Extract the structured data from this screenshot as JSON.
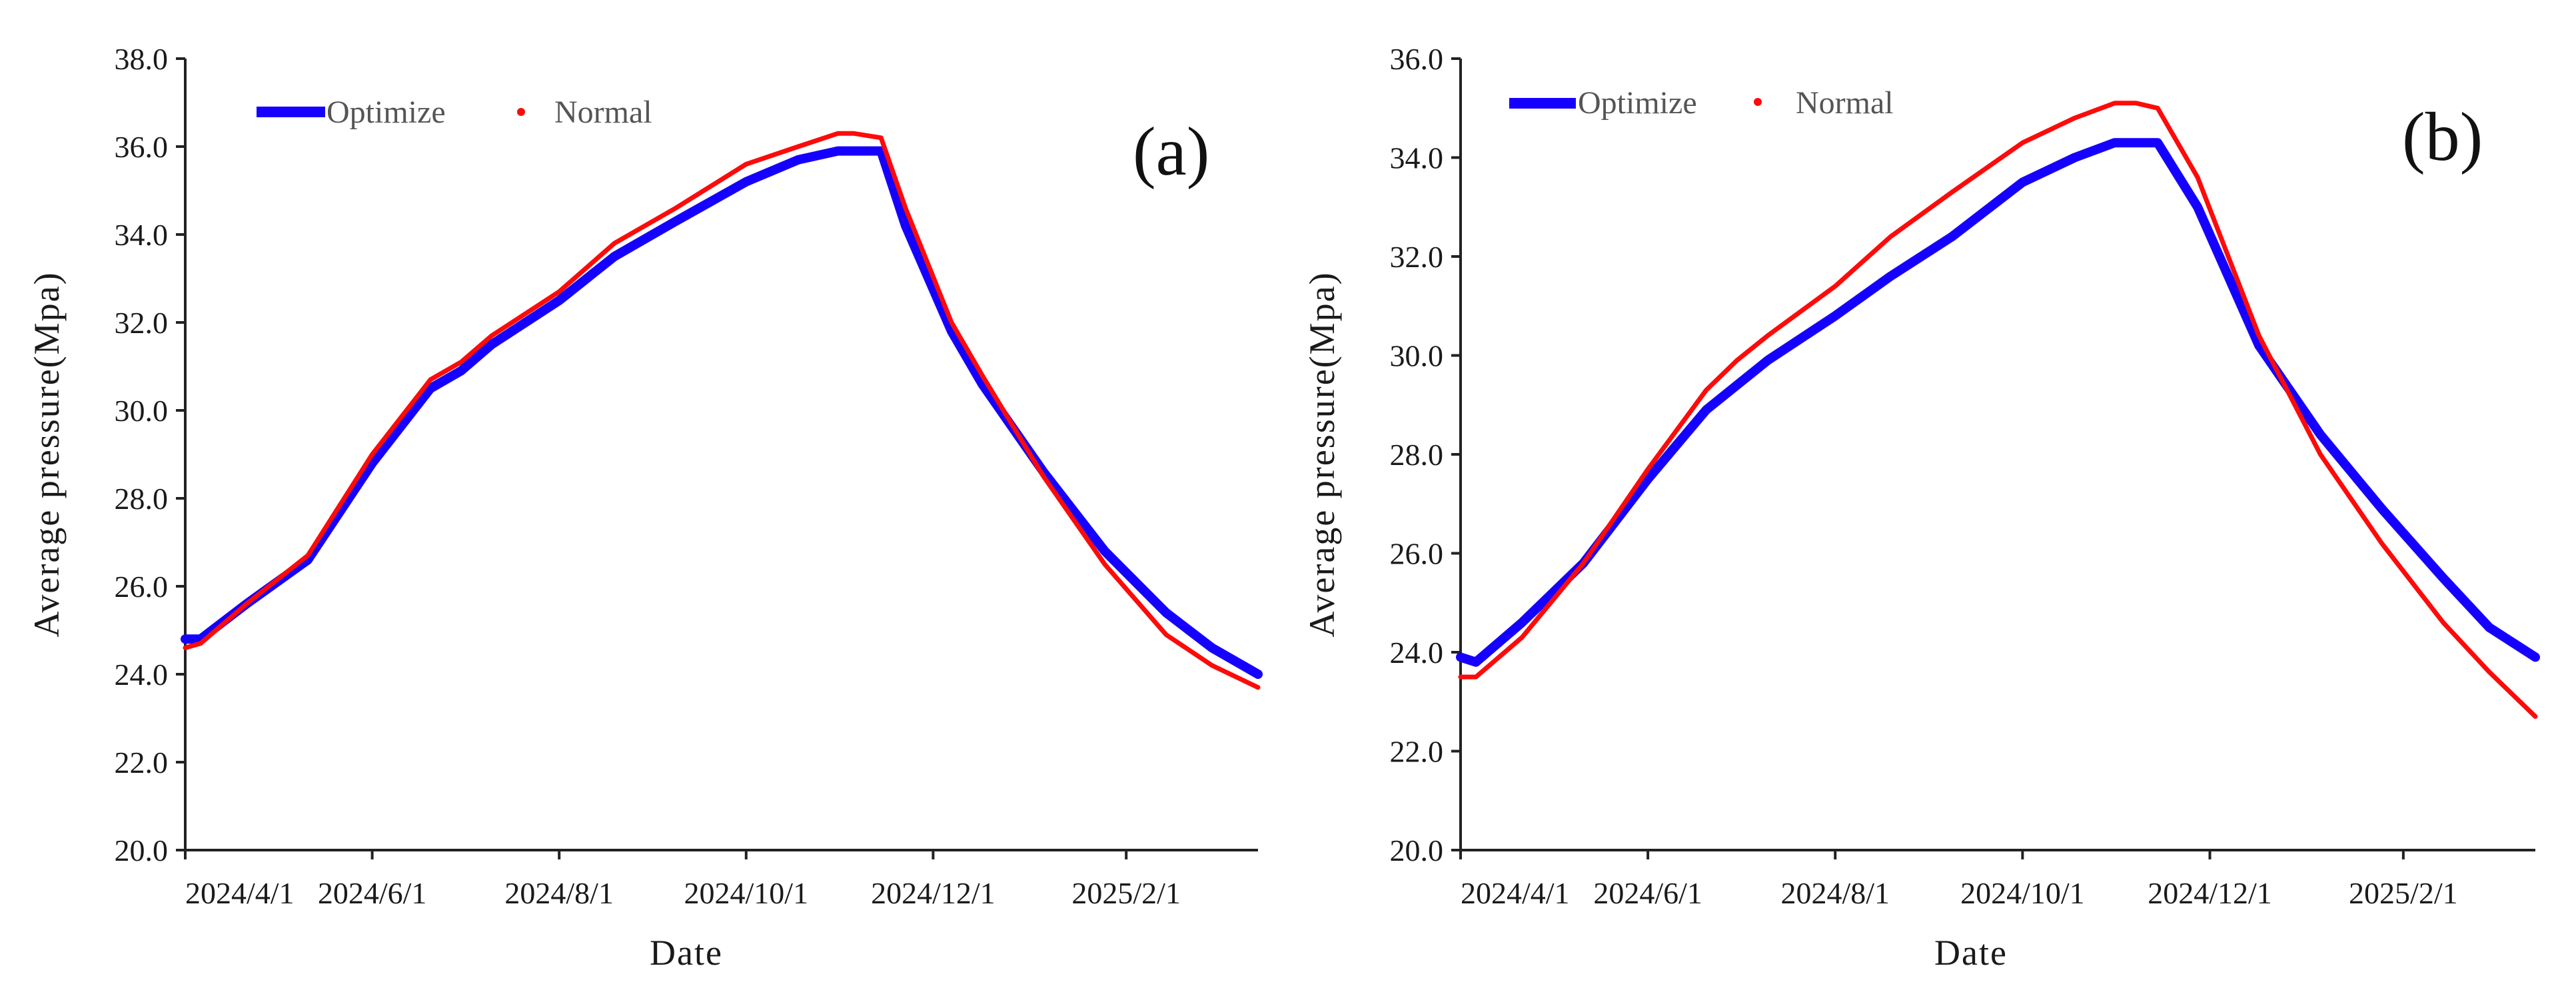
{
  "colors": {
    "optimize": "#1500ff",
    "normal": "#ff0a0a",
    "axis": "#222222",
    "text": "#1a1a1a"
  },
  "chart_data": [
    {
      "type": "line",
      "panel_label": "(a)",
      "xlabel": "Date",
      "ylabel": "Average pressure(Mpa)",
      "ylim": [
        20.0,
        38.0
      ],
      "yticks": [
        "20.0",
        "22.0",
        "24.0",
        "26.0",
        "28.0",
        "30.0",
        "32.0",
        "34.0",
        "36.0",
        "38.0"
      ],
      "x_range_days": [
        0,
        350
      ],
      "xticks": [
        {
          "label": "2024/4/1",
          "day": 0
        },
        {
          "label": "2024/6/1",
          "day": 61
        },
        {
          "label": "2024/8/1",
          "day": 122
        },
        {
          "label": "2024/10/1",
          "day": 183
        },
        {
          "label": "2024/12/1",
          "day": 244
        },
        {
          "label": "2025/2/1",
          "day": 307
        }
      ],
      "legend": [
        {
          "name": "Optimize",
          "style": "thick-line"
        },
        {
          "name": "Normal",
          "style": "dot"
        }
      ],
      "series": [
        {
          "name": "Optimize",
          "x": [
            0,
            5,
            20,
            40,
            61,
            80,
            90,
            100,
            122,
            140,
            160,
            183,
            200,
            213,
            220,
            227,
            235,
            250,
            260,
            280,
            300,
            320,
            335,
            350
          ],
          "y": [
            24.8,
            24.8,
            25.6,
            26.6,
            28.8,
            30.5,
            30.9,
            31.5,
            32.5,
            33.5,
            34.3,
            35.2,
            35.7,
            35.9,
            35.9,
            35.9,
            34.2,
            31.8,
            30.6,
            28.6,
            26.8,
            25.4,
            24.6,
            24.0
          ]
        },
        {
          "name": "Normal",
          "x": [
            0,
            5,
            20,
            40,
            61,
            80,
            90,
            100,
            122,
            140,
            160,
            183,
            200,
            213,
            218,
            227,
            235,
            250,
            260,
            280,
            300,
            320,
            335,
            350
          ],
          "y": [
            24.6,
            24.7,
            25.6,
            26.7,
            29.0,
            30.7,
            31.1,
            31.7,
            32.7,
            33.8,
            34.6,
            35.6,
            36.0,
            36.3,
            36.3,
            36.2,
            34.6,
            32.0,
            30.8,
            28.5,
            26.5,
            24.9,
            24.2,
            23.7
          ]
        }
      ]
    },
    {
      "type": "line",
      "panel_label": "(b)",
      "xlabel": "Date",
      "ylabel": "Average pressure(Mpa)",
      "ylim": [
        20.0,
        36.0
      ],
      "yticks": [
        "20.0",
        "22.0",
        "24.0",
        "26.0",
        "28.0",
        "30.0",
        "32.0",
        "34.0",
        "36.0"
      ],
      "x_range_days": [
        0,
        350
      ],
      "xticks": [
        {
          "label": "2024/4/1",
          "day": 0
        },
        {
          "label": "2024/6/1",
          "day": 61
        },
        {
          "label": "2024/8/1",
          "day": 122
        },
        {
          "label": "2024/10/1",
          "day": 183
        },
        {
          "label": "2024/12/1",
          "day": 244
        },
        {
          "label": "2025/2/1",
          "day": 307
        }
      ],
      "legend": [
        {
          "name": "Optimize",
          "style": "thick-line"
        },
        {
          "name": "Normal",
          "style": "dot"
        }
      ],
      "series": [
        {
          "name": "Optimize",
          "x": [
            0,
            5,
            20,
            40,
            61,
            80,
            90,
            100,
            122,
            140,
            160,
            183,
            200,
            213,
            220,
            227,
            240,
            260,
            280,
            300,
            320,
            335,
            350
          ],
          "y": [
            23.9,
            23.8,
            24.6,
            25.8,
            27.5,
            28.9,
            29.4,
            29.9,
            30.8,
            31.6,
            32.4,
            33.5,
            34.0,
            34.3,
            34.3,
            34.3,
            33.0,
            30.2,
            28.4,
            26.9,
            25.5,
            24.5,
            23.9
          ]
        },
        {
          "name": "Normal",
          "x": [
            0,
            5,
            20,
            40,
            61,
            80,
            90,
            100,
            122,
            140,
            160,
            183,
            200,
            213,
            220,
            227,
            240,
            260,
            280,
            300,
            320,
            335,
            350
          ],
          "y": [
            23.5,
            23.5,
            24.3,
            25.8,
            27.7,
            29.3,
            29.9,
            30.4,
            31.4,
            32.4,
            33.3,
            34.3,
            34.8,
            35.1,
            35.1,
            35.0,
            33.6,
            30.4,
            28.0,
            26.2,
            24.6,
            23.6,
            22.7
          ]
        }
      ]
    }
  ]
}
